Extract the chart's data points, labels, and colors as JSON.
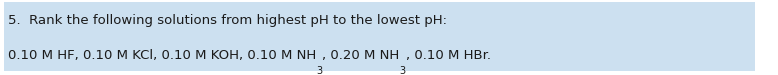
{
  "line1": "5.  Rank the following solutions from highest pH to the lowest pH:",
  "line2_seg1": "0.10 M HF, 0.10 M KCl, 0.10 M KOH, 0.10 M NH",
  "line2_sub1": "3",
  "line2_seg2": ", 0.20 M NH",
  "line2_sub2": "3",
  "line2_seg3": ", 0.10 M HBr.",
  "highlight_color": "#cce0f0",
  "background_color": "#ffffff",
  "text_color": "#1a1a1a",
  "font_size": 9.5,
  "sub_font_size": 7.0,
  "fig_width": 7.78,
  "fig_height": 0.75,
  "dpi": 100
}
